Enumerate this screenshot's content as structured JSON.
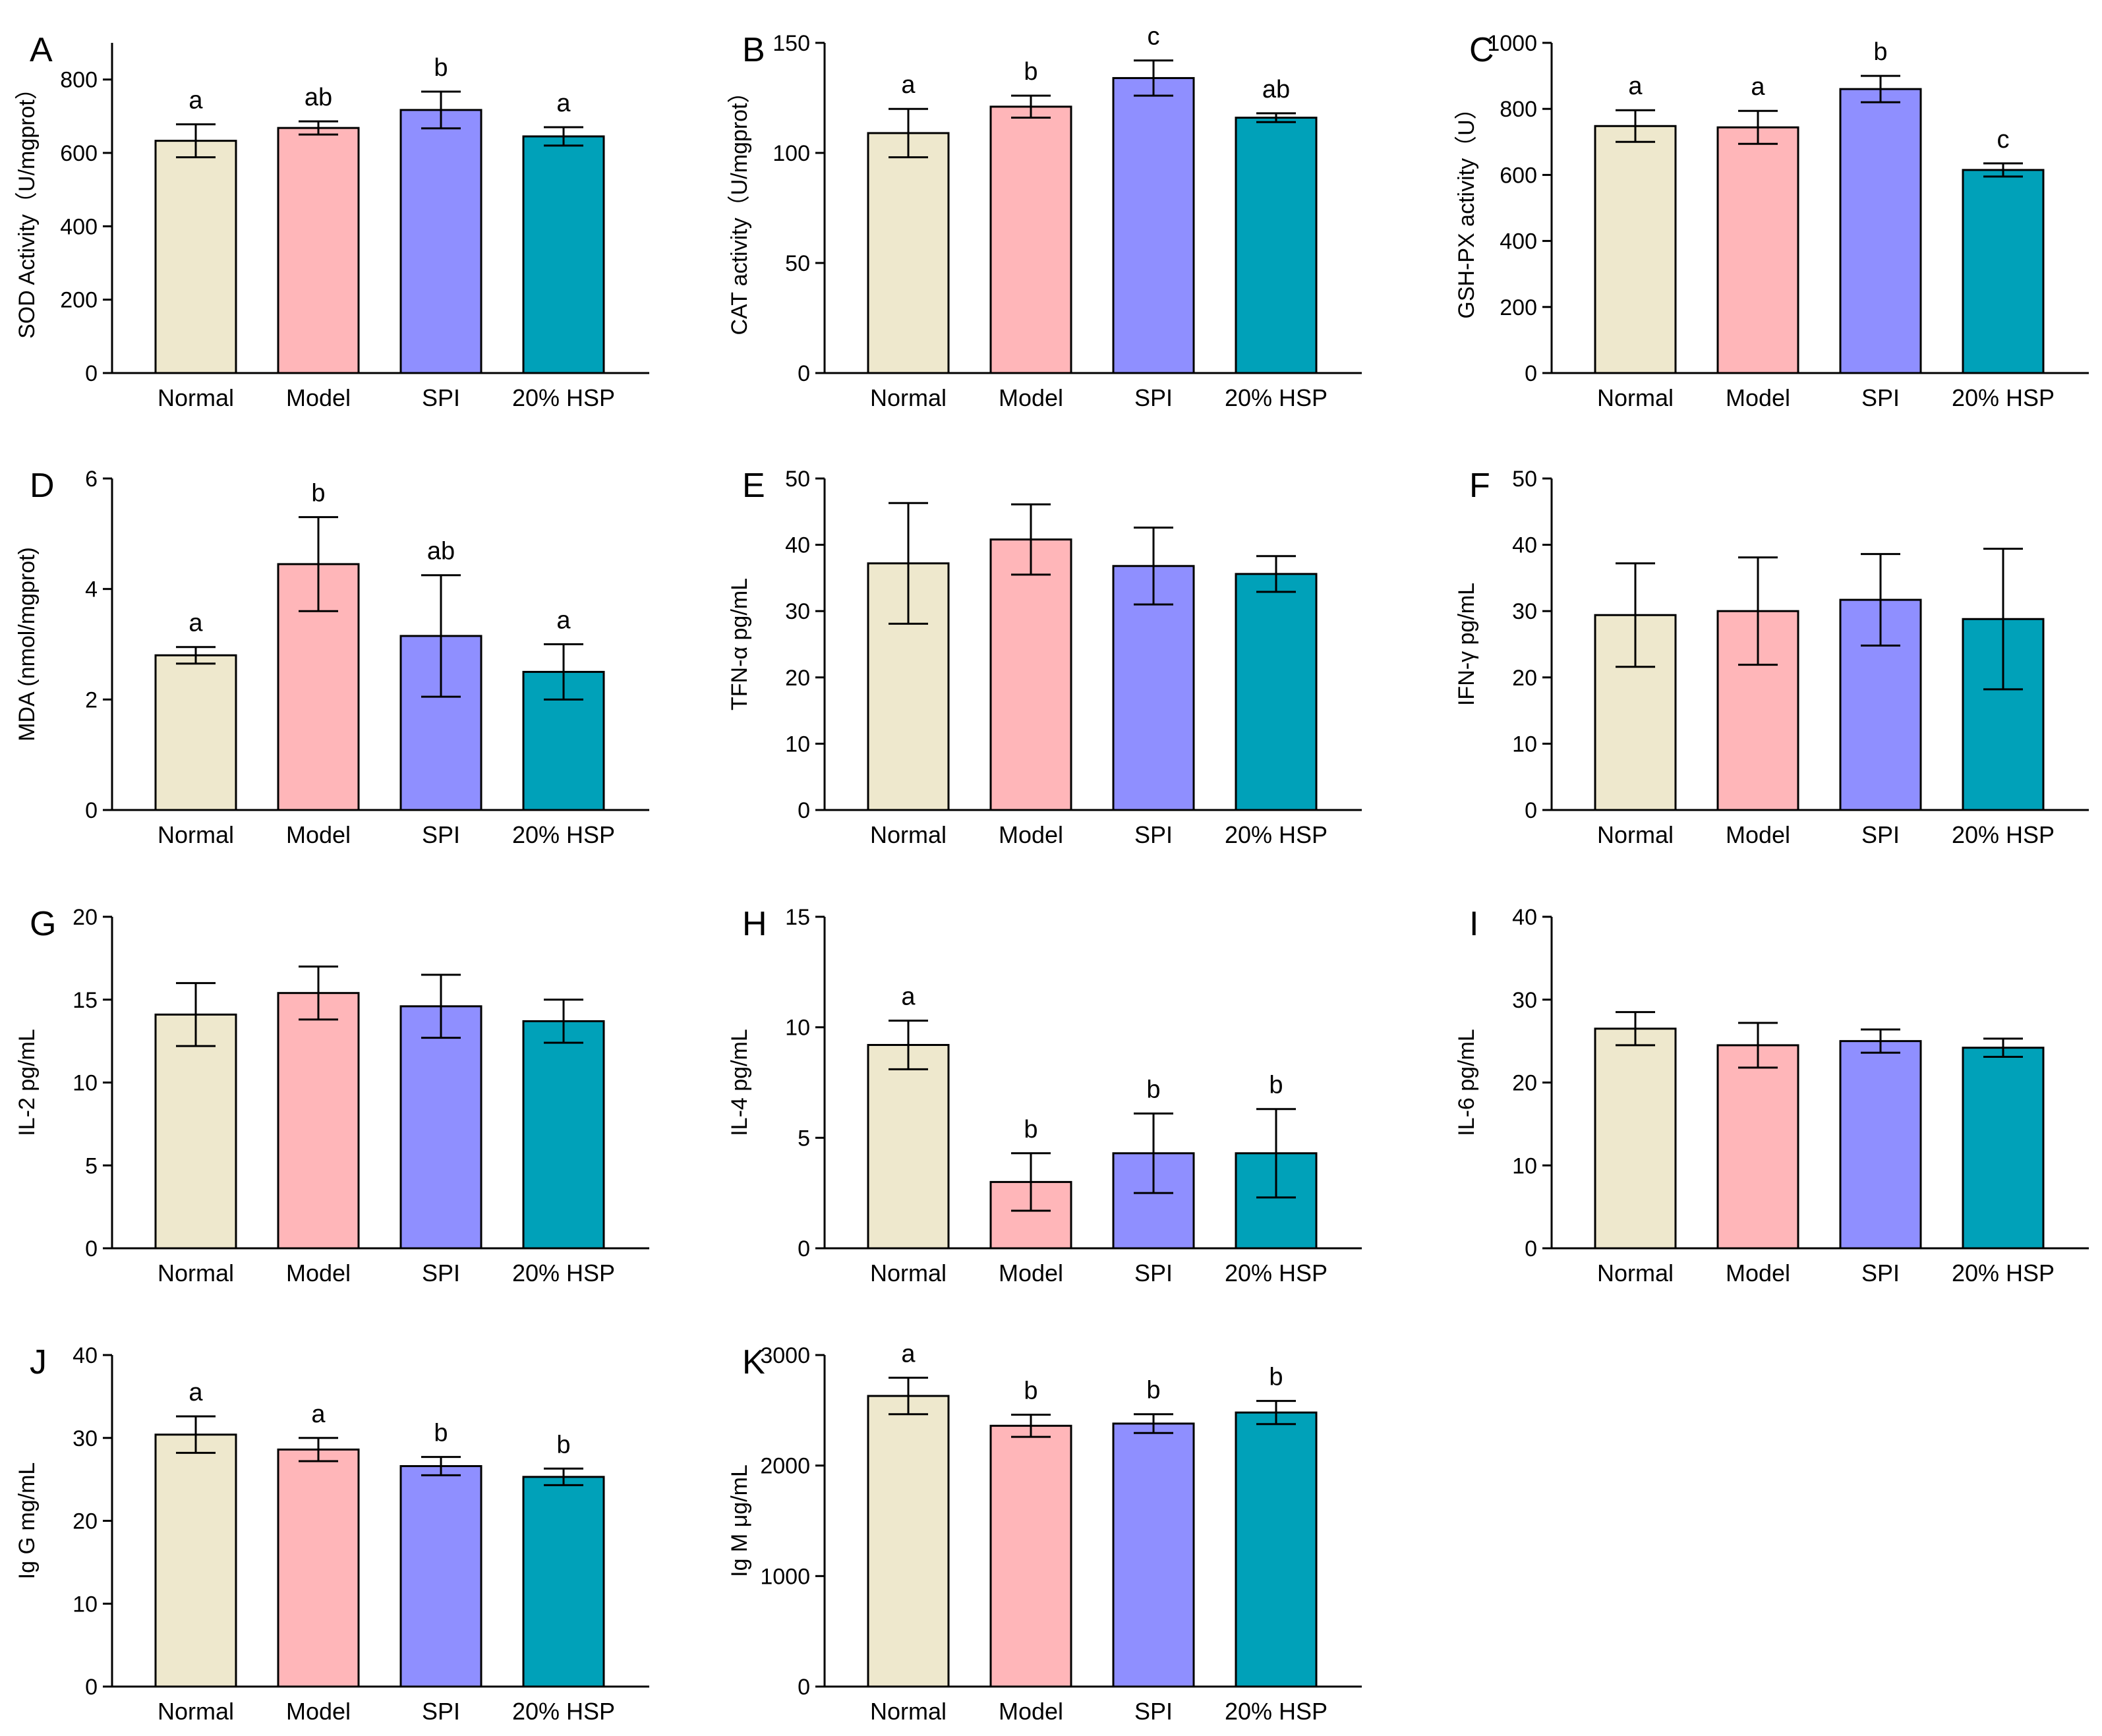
{
  "figure": {
    "colors": {
      "Normal": "#EEE8CD",
      "Model": "#FFB6B9",
      "SPI": "#8F8FFF",
      "20% HSP": "#00A1B9"
    }
  },
  "chart_data": [
    {
      "panel": "A",
      "type": "bar",
      "categories": [
        "Normal",
        "Model",
        "SPI",
        "20% HSP"
      ],
      "values": [
        633,
        668,
        717,
        645
      ],
      "errors": [
        45,
        18,
        50,
        25
      ],
      "significance": [
        "a",
        "ab",
        "b",
        "a"
      ],
      "ylabel": "SOD Activity（U/mgprot）",
      "ylim": [
        0,
        900
      ],
      "yticks": [
        0,
        200,
        400,
        600,
        800
      ]
    },
    {
      "panel": "B",
      "type": "bar",
      "categories": [
        "Normal",
        "Model",
        "SPI",
        "20% HSP"
      ],
      "values": [
        109,
        121,
        134,
        116
      ],
      "errors": [
        11,
        5,
        8,
        2
      ],
      "significance": [
        "a",
        "b",
        "c",
        "ab"
      ],
      "ylabel": "CAT activity（U/mgprot）",
      "ylim": [
        0,
        150
      ],
      "yticks": [
        0,
        50,
        100,
        150
      ]
    },
    {
      "panel": "C",
      "type": "bar",
      "categories": [
        "Normal",
        "Model",
        "SPI",
        "20% HSP"
      ],
      "values": [
        748,
        744,
        860,
        615
      ],
      "errors": [
        48,
        50,
        40,
        20
      ],
      "significance": [
        "a",
        "a",
        "b",
        "c"
      ],
      "ylabel": "GSH-PX activity（U）",
      "ylim": [
        0,
        1000
      ],
      "yticks": [
        0,
        200,
        400,
        600,
        800,
        1000
      ]
    },
    {
      "panel": "D",
      "type": "bar",
      "categories": [
        "Normal",
        "Model",
        "SPI",
        "20% HSP"
      ],
      "values": [
        2.8,
        4.45,
        3.15,
        2.5
      ],
      "errors": [
        0.15,
        0.85,
        1.1,
        0.5
      ],
      "significance": [
        "a",
        "b",
        "ab",
        "a"
      ],
      "ylabel": "MDA (nmol/mgprot)",
      "ylim": [
        0,
        6
      ],
      "yticks": [
        0,
        2,
        4,
        6
      ]
    },
    {
      "panel": "E",
      "type": "bar",
      "categories": [
        "Normal",
        "Model",
        "SPI",
        "20% HSP"
      ],
      "values": [
        37.2,
        40.8,
        36.8,
        35.6
      ],
      "errors": [
        9.1,
        5.3,
        5.8,
        2.7
      ],
      "significance": [
        "",
        "",
        "",
        ""
      ],
      "ylabel": "TFN-α pg/mL",
      "ylim": [
        0,
        50
      ],
      "yticks": [
        0,
        10,
        20,
        30,
        40,
        50
      ]
    },
    {
      "panel": "F",
      "type": "bar",
      "categories": [
        "Normal",
        "Model",
        "SPI",
        "20% HSP"
      ],
      "values": [
        29.4,
        30.0,
        31.7,
        28.8
      ],
      "errors": [
        7.8,
        8.1,
        6.9,
        10.6
      ],
      "significance": [
        "",
        "",
        "",
        ""
      ],
      "ylabel": "IFN-γ pg/mL",
      "ylim": [
        0,
        50
      ],
      "yticks": [
        0,
        10,
        20,
        30,
        40,
        50
      ]
    },
    {
      "panel": "G",
      "type": "bar",
      "categories": [
        "Normal",
        "Model",
        "SPI",
        "20% HSP"
      ],
      "values": [
        14.1,
        15.4,
        14.6,
        13.7
      ],
      "errors": [
        1.9,
        1.6,
        1.9,
        1.3
      ],
      "significance": [
        "",
        "",
        "",
        ""
      ],
      "ylabel": "IL-2 pg/mL",
      "ylim": [
        0,
        20
      ],
      "yticks": [
        0,
        5,
        10,
        15,
        20
      ]
    },
    {
      "panel": "H",
      "type": "bar",
      "categories": [
        "Normal",
        "Model",
        "SPI",
        "20% HSP"
      ],
      "values": [
        9.2,
        3.0,
        4.3,
        4.3
      ],
      "errors": [
        1.1,
        1.3,
        1.8,
        2.0
      ],
      "significance": [
        "a",
        "b",
        "b",
        "b"
      ],
      "ylabel": "IL-4 pg/mL",
      "ylim": [
        0,
        15
      ],
      "yticks": [
        0,
        5,
        10,
        15
      ]
    },
    {
      "panel": "I",
      "type": "bar",
      "categories": [
        "Normal",
        "Model",
        "SPI",
        "20% HSP"
      ],
      "values": [
        26.5,
        24.5,
        25.0,
        24.2
      ],
      "errors": [
        2.0,
        2.7,
        1.4,
        1.1
      ],
      "significance": [
        "",
        "",
        "",
        ""
      ],
      "ylabel": "IL-6 pg/mL",
      "ylim": [
        0,
        40
      ],
      "yticks": [
        0,
        10,
        20,
        30,
        40
      ]
    },
    {
      "panel": "J",
      "type": "bar",
      "categories": [
        "Normal",
        "Model",
        "SPI",
        "20% HSP"
      ],
      "values": [
        30.4,
        28.6,
        26.6,
        25.3
      ],
      "errors": [
        2.2,
        1.4,
        1.1,
        1.0
      ],
      "significance": [
        "a",
        "a",
        "b",
        "b"
      ],
      "ylabel": "Ig G mg/mL",
      "ylim": [
        0,
        40
      ],
      "yticks": [
        0,
        10,
        20,
        30,
        40
      ]
    },
    {
      "panel": "K",
      "type": "bar",
      "categories": [
        "Normal",
        "Model",
        "SPI",
        "20% HSP"
      ],
      "values": [
        2630,
        2360,
        2380,
        2480
      ],
      "errors": [
        165,
        100,
        85,
        105
      ],
      "significance": [
        "a",
        "b",
        "b",
        "b"
      ],
      "ylabel": "Ig M μg/mL",
      "ylim": [
        0,
        3000
      ],
      "yticks": [
        0,
        1000,
        2000,
        3000
      ]
    }
  ]
}
